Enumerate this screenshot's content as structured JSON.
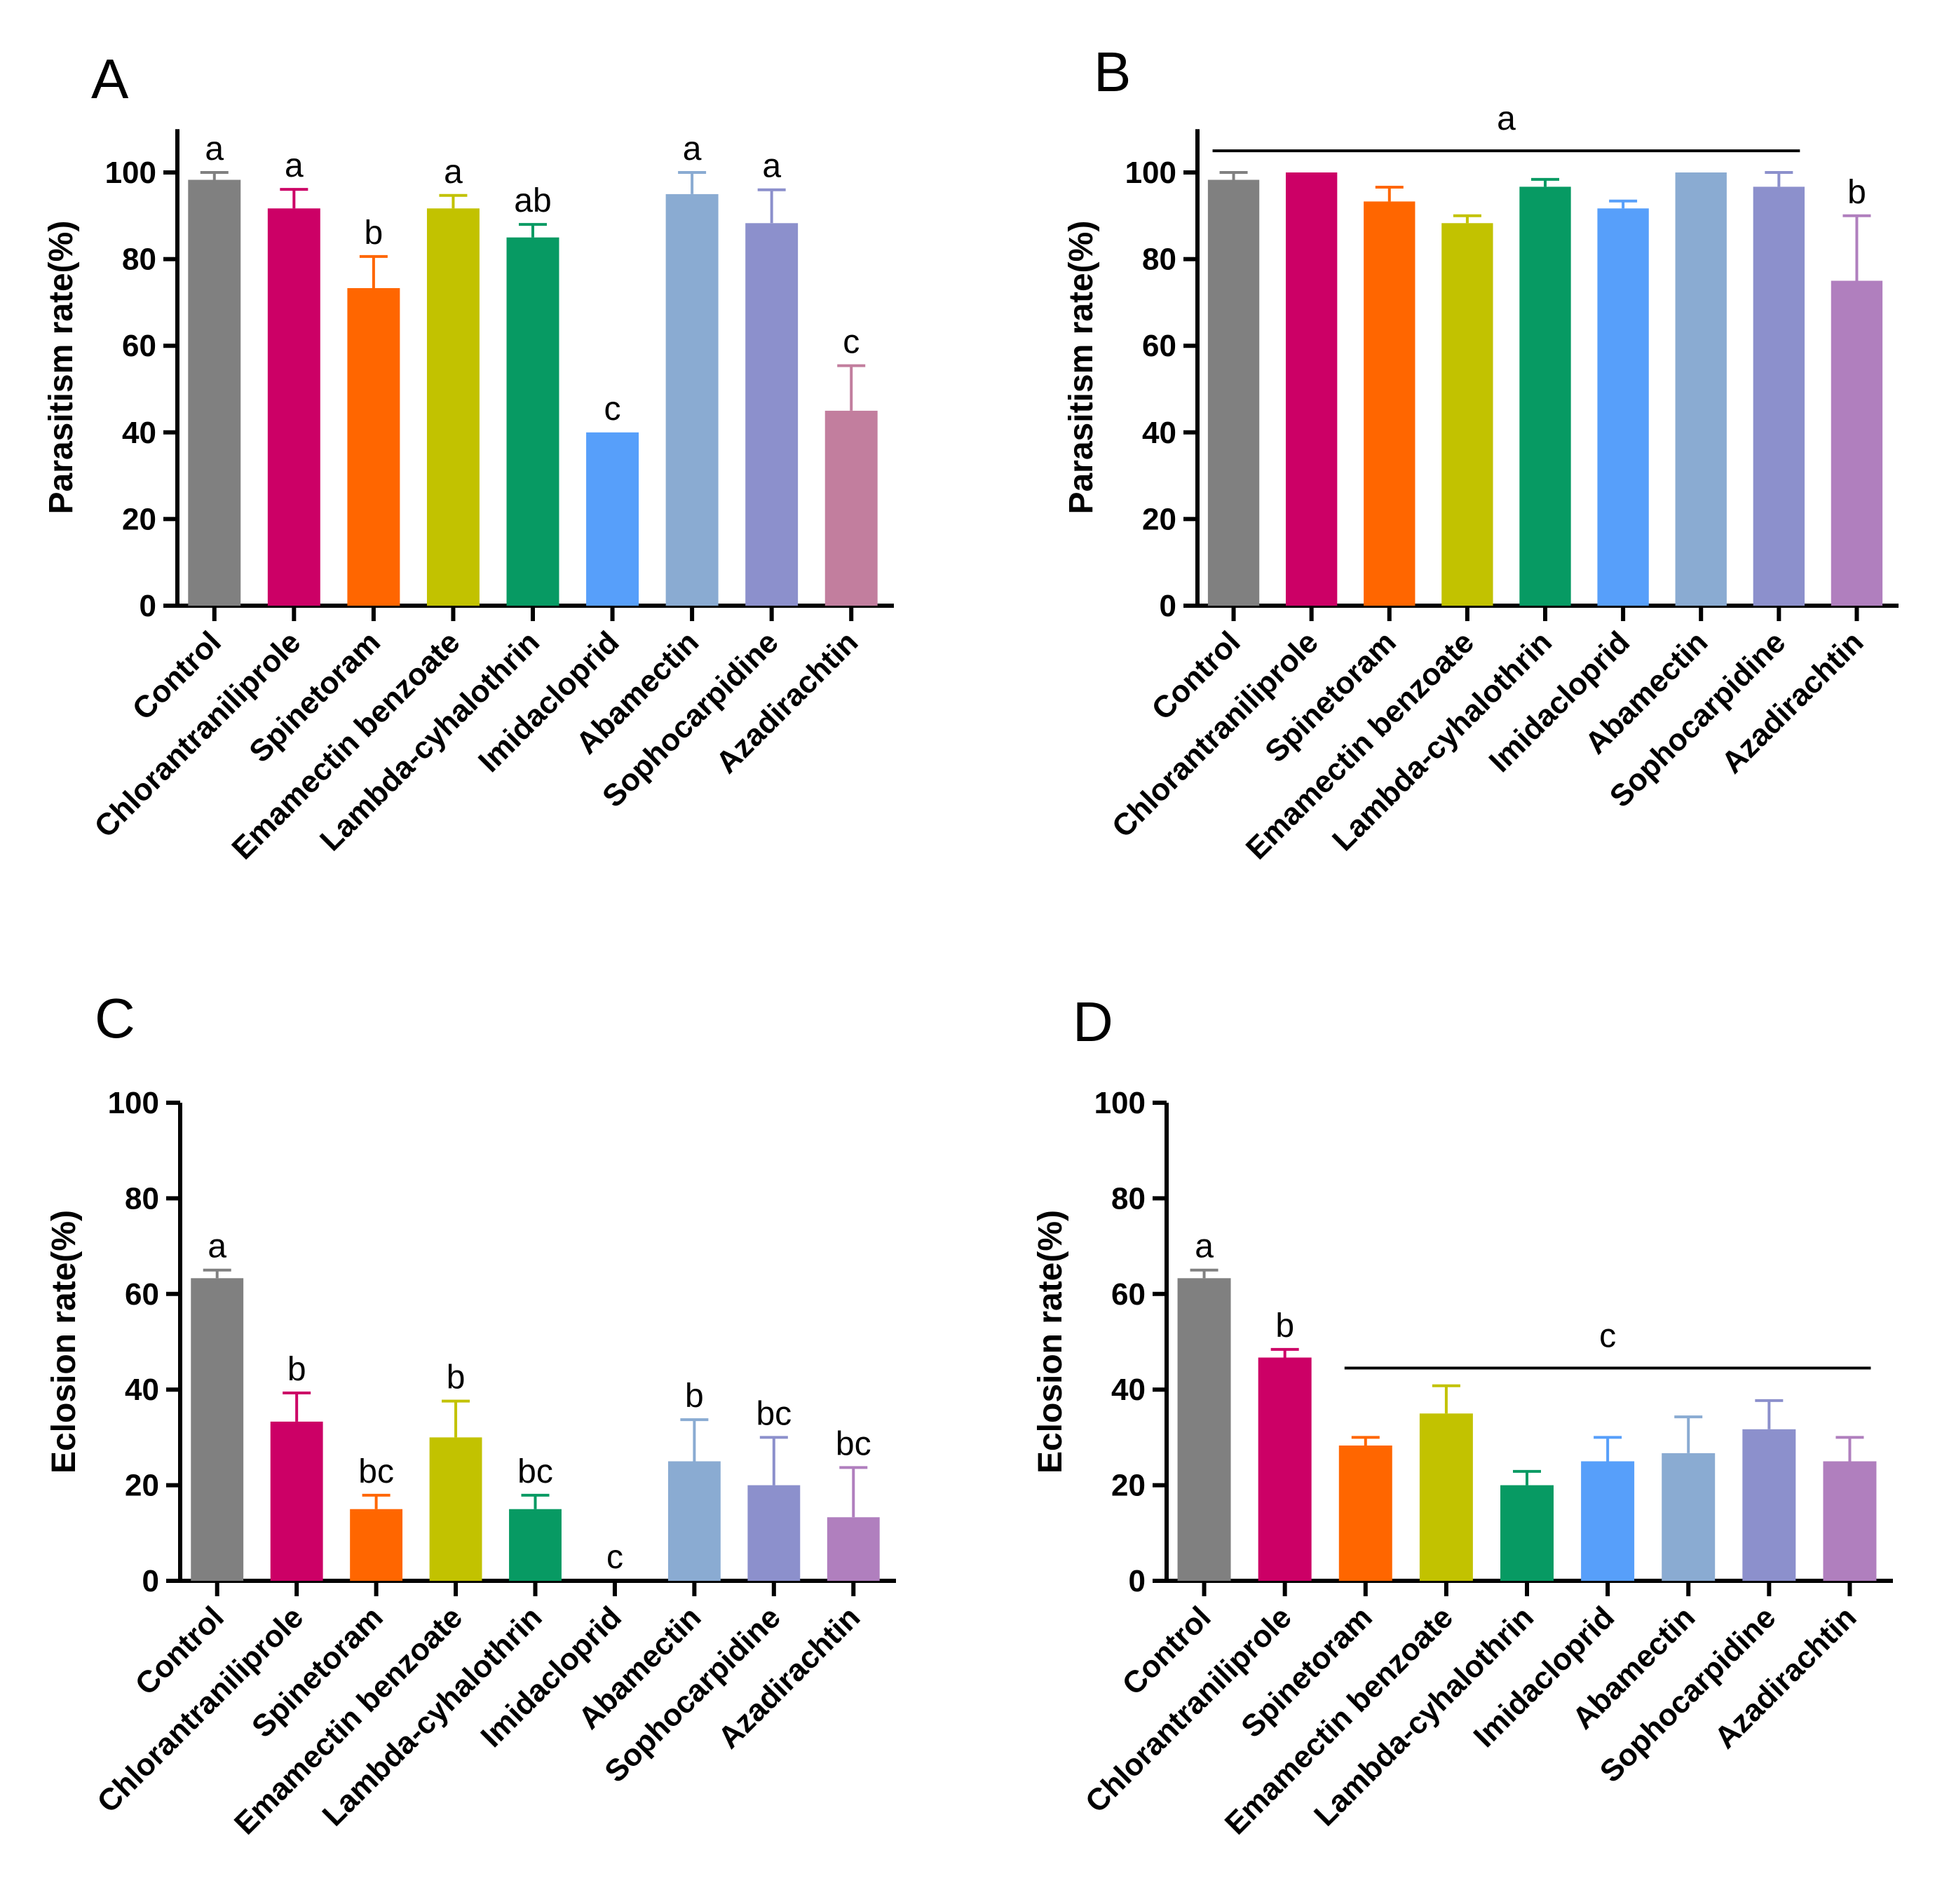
{
  "chart_data": [
    {
      "panel": "A",
      "type": "bar",
      "ylabel": "Parasitism rate(%)",
      "ylim": [
        0,
        110
      ],
      "yticks": [
        0,
        20,
        40,
        60,
        80,
        100
      ],
      "categories": [
        "Control",
        "Chlorantraniliprole",
        "Spinetoram",
        "Emamectin benzoate",
        "Lambda-cyhalothrin",
        "Imidacloprid",
        "Abamectin",
        "Sophocarpidine",
        "Azadirachtin"
      ],
      "values": [
        98.3,
        91.7,
        73.3,
        91.7,
        85.0,
        40.0,
        95.0,
        88.3,
        45.0
      ],
      "errors": [
        1.7,
        4.4,
        7.3,
        3.0,
        3.0,
        0,
        5.0,
        7.7,
        10.4
      ],
      "letters": [
        "a",
        "a",
        "b",
        "a",
        "ab",
        "c",
        "a",
        "a",
        "c"
      ],
      "group_lines": [],
      "colors": [
        "#808080",
        "#cc0066",
        "#ff6600",
        "#c2c200",
        "#079a63",
        "#579ffa",
        "#8aabd2",
        "#8c90cc",
        "#c27e9e"
      ]
    },
    {
      "panel": "B",
      "type": "bar",
      "ylabel": "Parasitism rate(%)",
      "ylim": [
        0,
        110
      ],
      "yticks": [
        0,
        20,
        40,
        60,
        80,
        100
      ],
      "categories": [
        "Control",
        "Chlorantraniliprole",
        "Spinetoram",
        "Emamectin benzoate",
        "Lambda-cyhalothrin",
        "Imidacloprid",
        "Abamectin",
        "Sophocarpidine",
        "Azadirachtin"
      ],
      "values": [
        98.3,
        100,
        93.3,
        88.3,
        96.7,
        91.7,
        100,
        96.7,
        75.0
      ],
      "errors": [
        1.7,
        0,
        3.3,
        1.7,
        1.7,
        1.7,
        0,
        3.3,
        15.0
      ],
      "letters": [
        "",
        "",
        "",
        "",
        "",
        "",
        "",
        "",
        "b"
      ],
      "group_lines": [
        {
          "from": 0,
          "to": 7,
          "value": 105,
          "letter": "a"
        }
      ],
      "colors": [
        "#808080",
        "#cc0066",
        "#ff6600",
        "#c2c200",
        "#079a63",
        "#579ffa",
        "#8aabd2",
        "#8c90cc",
        "#b07fbe"
      ]
    },
    {
      "panel": "C",
      "type": "bar",
      "ylabel": "Eclosion rate(%)",
      "ylim": [
        0,
        100
      ],
      "yticks": [
        0,
        20,
        40,
        60,
        80,
        100
      ],
      "categories": [
        "Control",
        "Chlorantraniliprole",
        "Spinetoram",
        "Emamectin benzoate",
        "Lambda-cyhalothrin",
        "Imidacloprid",
        "Abamectin",
        "Sophocarpidine",
        "Azadirachtin"
      ],
      "values": [
        63.3,
        33.3,
        15.0,
        30.0,
        15.0,
        0,
        25.0,
        20.0,
        13.3
      ],
      "errors": [
        1.7,
        6.0,
        2.9,
        7.6,
        2.9,
        0,
        8.7,
        10.0,
        10.4
      ],
      "letters": [
        "a",
        "b",
        "bc",
        "b",
        "bc",
        "c",
        "b",
        "bc",
        "bc"
      ],
      "group_lines": [],
      "colors": [
        "#808080",
        "#cc0066",
        "#ff6600",
        "#c2c200",
        "#079a63",
        "#579ffa",
        "#8aabd2",
        "#8c90cc",
        "#b07fbe"
      ]
    },
    {
      "panel": "D",
      "type": "bar",
      "ylabel": "Eclosion rate(%)",
      "ylim": [
        0,
        100
      ],
      "yticks": [
        0,
        20,
        40,
        60,
        80,
        100
      ],
      "categories": [
        "Control",
        "Chlorantraniliprole",
        "Spinetoram",
        "Emamectin benzoate",
        "Lambda-cyhalothrin",
        "Imidacloprid",
        "Abamectin",
        "Sophocarpidine",
        "Azadirachtin"
      ],
      "values": [
        63.3,
        46.7,
        28.3,
        35.0,
        20.0,
        25.0,
        26.7,
        31.7,
        25.0
      ],
      "errors": [
        1.7,
        1.7,
        1.7,
        5.8,
        2.9,
        5.0,
        7.6,
        6.0,
        5.0
      ],
      "letters": [
        "a",
        "b",
        "",
        "",
        "",
        "",
        "",
        "",
        ""
      ],
      "group_lines": [
        {
          "from": 2,
          "to": 8,
          "value": 44.5,
          "letter": "c"
        }
      ],
      "colors": [
        "#808080",
        "#cc0066",
        "#ff6600",
        "#c2c200",
        "#079a63",
        "#579ffa",
        "#8aabd2",
        "#8c90cc",
        "#b07fbe"
      ]
    }
  ]
}
